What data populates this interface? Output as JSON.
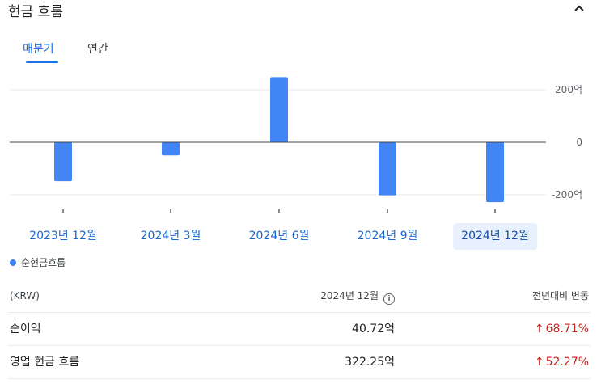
{
  "header": {
    "title": "현금 흐름"
  },
  "tabs": [
    {
      "label": "매분기"
    },
    {
      "label": "연간"
    }
  ],
  "colors": {
    "bar": "#4285f4",
    "accent": "#1a73e8",
    "negative": "#c5221f",
    "selected_bg": "#e8f0fe"
  },
  "chart_data": {
    "type": "bar",
    "categories": [
      "2023년 12월",
      "2024년 3월",
      "2024년 6월",
      "2024년 9월",
      "2024년 12월"
    ],
    "series": [
      {
        "name": "순현금흐름",
        "values": [
          -148,
          -50,
          248,
          -202,
          -228
        ]
      }
    ],
    "ylim": [
      -240,
      250
    ],
    "yticks": [
      200,
      0,
      -200
    ],
    "ytick_labels": [
      "200억",
      "0",
      "-200억"
    ],
    "selected_category": "2024년 12월",
    "legend": "bottom-left",
    "grid": true
  },
  "legend": {
    "label": "순현금흐름"
  },
  "table": {
    "headers": {
      "unit": "(KRW)",
      "period": "2024년 12월",
      "change": "전년대비 변동"
    },
    "rows": [
      {
        "label": "순이익",
        "value": "40.72억",
        "change": "68.71%"
      },
      {
        "label": "영업 현금 흐름",
        "value": "322.25억",
        "change": "52.27%"
      }
    ]
  }
}
